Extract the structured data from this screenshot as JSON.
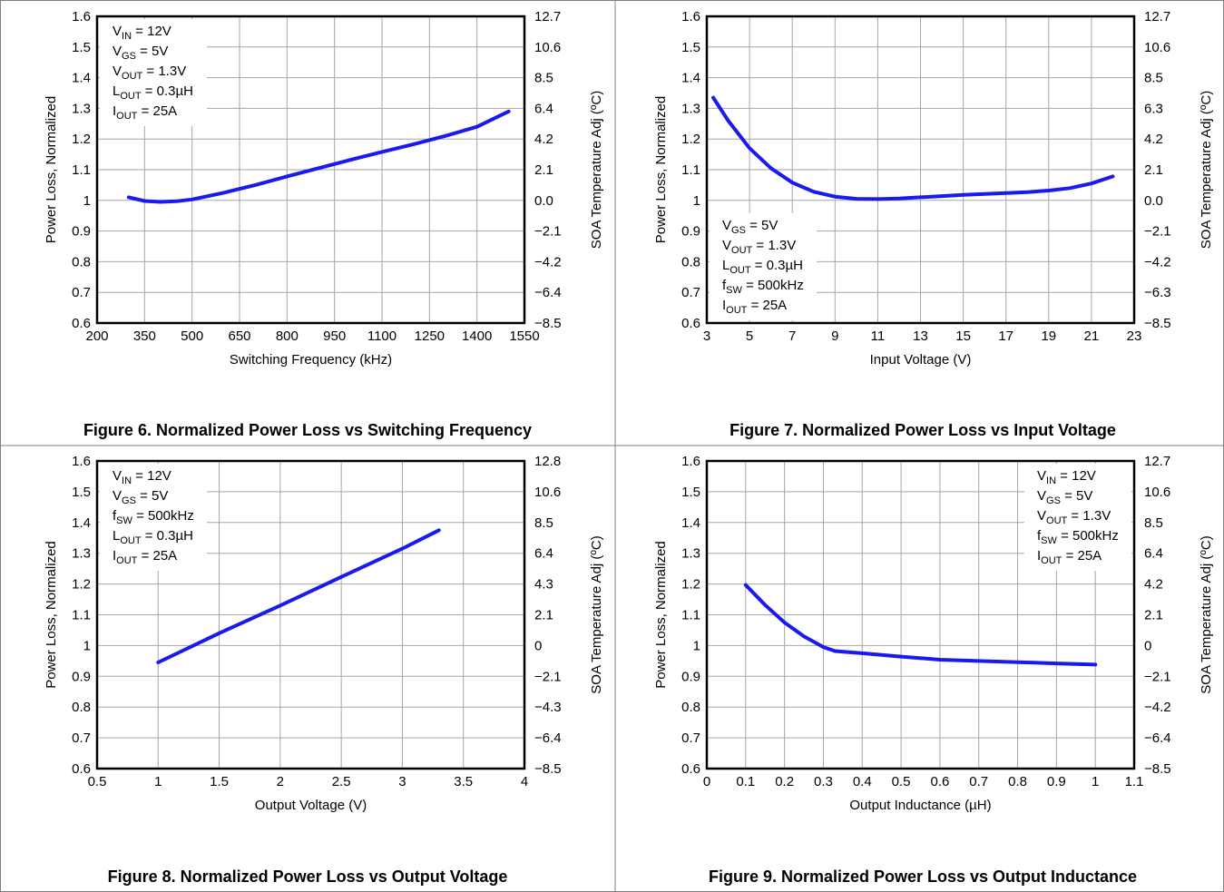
{
  "colors": {
    "curve": "#1a1aee",
    "grid": "#a6a6a6",
    "frame": "#7f7f7f"
  },
  "chart_data": [
    {
      "type": "line",
      "caption": "Figure 6. Normalized Power Loss vs Switching Frequency",
      "xlabel": "Switching Frequency (kHz)",
      "ylabel": "Power Loss, Normalized",
      "y2label": "SOA Temperature Adj (ºC)",
      "xlim": [
        200,
        1550
      ],
      "ylim": [
        0.6,
        1.6
      ],
      "xticks": [
        "200",
        "350",
        "500",
        "650",
        "800",
        "950",
        "1100",
        "1250",
        "1400",
        "1550"
      ],
      "yticks": [
        "0.6",
        "0.7",
        "0.8",
        "0.9",
        "1",
        "1.1",
        "1.2",
        "1.3",
        "1.4",
        "1.5",
        "1.6"
      ],
      "y2ticks": [
        "−8.5",
        "−6.4",
        "−4.2",
        "−2.1",
        "0.0",
        "2.1",
        "4.2",
        "6.4",
        "8.5",
        "10.6",
        "12.7"
      ],
      "grid": true,
      "conditions_position": "top-left",
      "conditions": [
        {
          "main": "V",
          "sub": "IN",
          "rest": " = 12V"
        },
        {
          "main": "V",
          "sub": "GS",
          "rest": " = 5V"
        },
        {
          "main": "V",
          "sub": "OUT",
          "rest": " = 1.3V"
        },
        {
          "main": "L",
          "sub": "OUT",
          "rest": " = 0.3µH"
        },
        {
          "main": "I",
          "sub": "OUT",
          "rest": " = 25A"
        }
      ],
      "series": [
        {
          "x": [
            300,
            350,
            400,
            450,
            500,
            600,
            700,
            800,
            900,
            1000,
            1100,
            1200,
            1300,
            1400,
            1500
          ],
          "y": [
            1.01,
            0.998,
            0.995,
            0.997,
            1.003,
            1.025,
            1.05,
            1.078,
            1.105,
            1.132,
            1.158,
            1.183,
            1.21,
            1.24,
            1.29
          ]
        }
      ]
    },
    {
      "type": "line",
      "caption": "Figure 7. Normalized Power Loss vs Input Voltage",
      "xlabel": "Input Voltage (V)",
      "ylabel": "Power Loss, Normalized",
      "y2label": "SOA Temperature Adj (ºC)",
      "xlim": [
        3,
        23
      ],
      "ylim": [
        0.6,
        1.6
      ],
      "xticks": [
        "3",
        "5",
        "7",
        "9",
        "11",
        "13",
        "15",
        "17",
        "19",
        "21",
        "23"
      ],
      "yticks": [
        "0.6",
        "0.7",
        "0.8",
        "0.9",
        "1",
        "1.1",
        "1.2",
        "1.3",
        "1.4",
        "1.5",
        "1.6"
      ],
      "y2ticks": [
        "−8.5",
        "−6.3",
        "−4.2",
        "−2.1",
        "0.0",
        "2.1",
        "4.2",
        "6.3",
        "8.5",
        "10.6",
        "12.7"
      ],
      "grid": true,
      "conditions_position": "bottom-left",
      "conditions": [
        {
          "main": "V",
          "sub": "GS",
          "rest": " = 5V"
        },
        {
          "main": "V",
          "sub": "OUT",
          "rest": " = 1.3V"
        },
        {
          "main": "L",
          "sub": "OUT",
          "rest": " = 0.3µH"
        },
        {
          "main": "f",
          "sub": "SW",
          "rest": " = 500kHz"
        },
        {
          "main": "I",
          "sub": "OUT",
          "rest": " = 25A"
        }
      ],
      "series": [
        {
          "x": [
            3.3,
            4,
            5,
            6,
            7,
            8,
            9,
            10,
            11,
            12,
            13,
            14,
            15,
            16,
            17,
            18,
            19,
            20,
            21,
            22
          ],
          "y": [
            1.335,
            1.26,
            1.17,
            1.105,
            1.058,
            1.028,
            1.012,
            1.005,
            1.004,
            1.006,
            1.01,
            1.014,
            1.018,
            1.021,
            1.024,
            1.027,
            1.032,
            1.04,
            1.055,
            1.078
          ]
        }
      ]
    },
    {
      "type": "line",
      "caption": "Figure 8. Normalized Power Loss vs Output Voltage",
      "xlabel": "Output Voltage (V)",
      "ylabel": "Power Loss, Normalized",
      "y2label": "SOA Temperature Adj (ºC)",
      "xlim": [
        0.5,
        4
      ],
      "ylim": [
        0.6,
        1.6
      ],
      "xticks": [
        "0.5",
        "1",
        "1.5",
        "2",
        "2.5",
        "3",
        "3.5",
        "4"
      ],
      "yticks": [
        "0.6",
        "0.7",
        "0.8",
        "0.9",
        "1",
        "1.1",
        "1.2",
        "1.3",
        "1.4",
        "1.5",
        "1.6"
      ],
      "y2ticks": [
        "−8.5",
        "−6.4",
        "−4.3",
        "−2.1",
        "0",
        "2.1",
        "4.3",
        "6.4",
        "8.5",
        "10.6",
        "12.8"
      ],
      "grid": true,
      "conditions_position": "top-left",
      "conditions": [
        {
          "main": "V",
          "sub": "IN",
          "rest": " = 12V"
        },
        {
          "main": "V",
          "sub": "GS",
          "rest": " = 5V"
        },
        {
          "main": "f",
          "sub": "SW",
          "rest": " = 500kHz"
        },
        {
          "main": "L",
          "sub": "OUT",
          "rest": " = 0.3µH"
        },
        {
          "main": "I",
          "sub": "OUT",
          "rest": " = 25A"
        }
      ],
      "series": [
        {
          "x": [
            1,
            1.5,
            2,
            2.5,
            3,
            3.3
          ],
          "y": [
            0.945,
            1.04,
            1.13,
            1.223,
            1.315,
            1.375
          ]
        }
      ]
    },
    {
      "type": "line",
      "caption": "Figure 9. Normalized Power Loss vs Output Inductance",
      "xlabel": "Output Inductance (µH)",
      "ylabel": "Power Loss, Normalized",
      "y2label": "SOA Temperature Adj (ºC)",
      "xlim": [
        0,
        1.1
      ],
      "ylim": [
        0.6,
        1.6
      ],
      "xticks": [
        "0",
        "0.1",
        "0.2",
        "0.3",
        "0.4",
        "0.5",
        "0.6",
        "0.7",
        "0.8",
        "0.9",
        "1",
        "1.1"
      ],
      "yticks": [
        "0.6",
        "0.7",
        "0.8",
        "0.9",
        "1",
        "1.1",
        "1.2",
        "1.3",
        "1.4",
        "1.5",
        "1.6"
      ],
      "y2ticks": [
        "−8.5",
        "−6.4",
        "−4.2",
        "−2.1",
        "0",
        "2.1",
        "4.2",
        "6.4",
        "8.5",
        "10.6",
        "12.7"
      ],
      "grid": true,
      "conditions_position": "top-right",
      "conditions": [
        {
          "main": "V",
          "sub": "IN",
          "rest": " = 12V"
        },
        {
          "main": "V",
          "sub": "GS",
          "rest": " = 5V"
        },
        {
          "main": "V",
          "sub": "OUT",
          "rest": " = 1.3V"
        },
        {
          "main": "f",
          "sub": "SW",
          "rest": " = 500kHz"
        },
        {
          "main": "I",
          "sub": "OUT",
          "rest": " = 25A"
        }
      ],
      "series": [
        {
          "x": [
            0.1,
            0.15,
            0.2,
            0.25,
            0.3,
            0.33,
            0.4,
            0.5,
            0.6,
            0.7,
            0.8,
            0.9,
            1.0
          ],
          "y": [
            1.197,
            1.132,
            1.075,
            1.03,
            0.995,
            0.982,
            0.975,
            0.964,
            0.954,
            0.95,
            0.946,
            0.942,
            0.938
          ]
        }
      ]
    }
  ]
}
